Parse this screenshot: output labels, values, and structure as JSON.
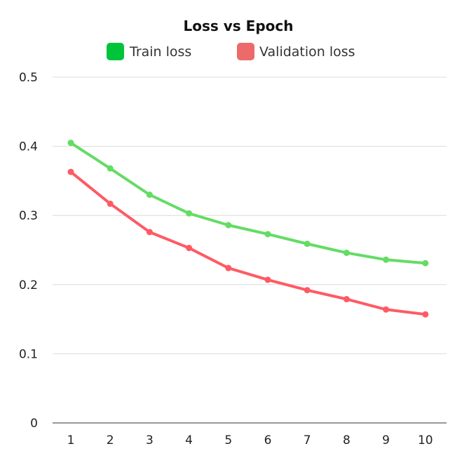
{
  "chart_data": {
    "type": "line",
    "title": "Loss vs Epoch",
    "xlabel": "",
    "ylabel": "",
    "x": [
      1,
      2,
      3,
      4,
      5,
      6,
      7,
      8,
      9,
      10
    ],
    "x_tick_labels": [
      "1",
      "2",
      "3",
      "4",
      "5",
      "6",
      "7",
      "8",
      "9",
      "10"
    ],
    "y_tick_labels": [
      "0",
      "0.1",
      "0.2",
      "0.3",
      "0.4",
      "0.5"
    ],
    "ylim": [
      0,
      0.5
    ],
    "grid": true,
    "legend_position": "top-center",
    "series": [
      {
        "name": "Train loss",
        "legend_color": "#00c43a",
        "line_color": "#64dc64",
        "values": [
          0.405,
          0.368,
          0.33,
          0.303,
          0.286,
          0.273,
          0.259,
          0.246,
          0.236,
          0.231
        ]
      },
      {
        "name": "Validation loss",
        "legend_color": "#ec6a6a",
        "line_color": "#ff5a64",
        "values": [
          0.363,
          0.317,
          0.276,
          0.253,
          0.224,
          0.207,
          0.192,
          0.179,
          0.164,
          0.157
        ]
      }
    ]
  }
}
